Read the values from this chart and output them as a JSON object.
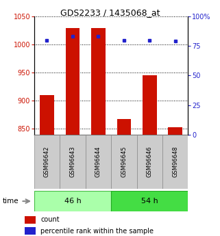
{
  "title": "GDS2233 / 1435068_at",
  "samples": [
    "GSM96642",
    "GSM96643",
    "GSM96644",
    "GSM96645",
    "GSM96646",
    "GSM96648"
  ],
  "counts": [
    910,
    1030,
    1030,
    867,
    946,
    853
  ],
  "percentiles": [
    80,
    83,
    83,
    80,
    80,
    79
  ],
  "ylim_left": [
    840,
    1050
  ],
  "ylim_right": [
    0,
    100
  ],
  "yticks_left": [
    850,
    900,
    950,
    1000,
    1050
  ],
  "yticks_right": [
    0,
    25,
    50,
    75,
    100
  ],
  "ytick_labels_right": [
    "0",
    "25",
    "50",
    "75",
    "100%"
  ],
  "group0_color": "#AAFFAA",
  "group1_color": "#44DD44",
  "group0_label": "46 h",
  "group1_label": "54 h",
  "bar_color": "#CC1100",
  "dot_color": "#2222CC",
  "bar_width": 0.55,
  "title_fontsize": 9,
  "tick_fontsize": 7,
  "sample_fontsize": 6,
  "group_fontsize": 8,
  "legend_fontsize": 7
}
